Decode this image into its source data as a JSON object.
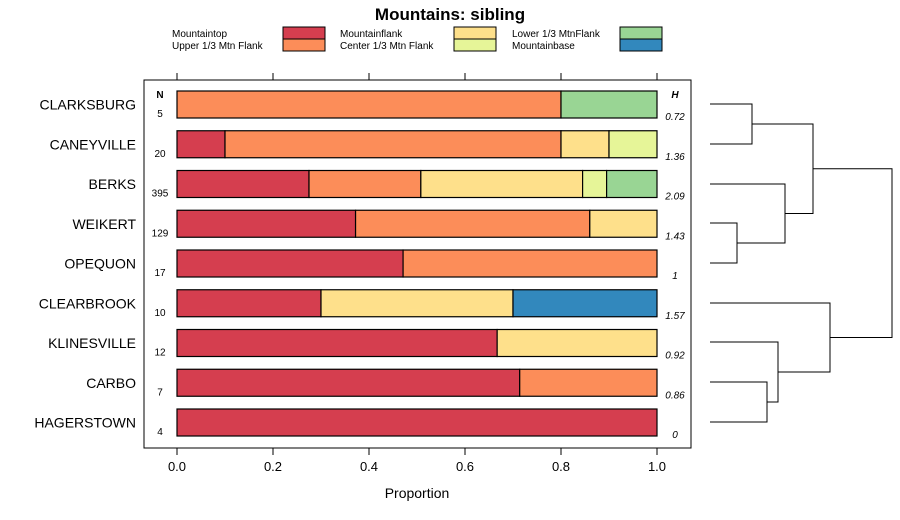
{
  "chart_data": {
    "type": "bar",
    "orientation": "horizontal",
    "stacked": true,
    "title": "Mountains: sibling",
    "xlabel": "Proportion",
    "ylabel": "",
    "xlim": [
      0,
      1
    ],
    "xticks": [
      "0.0",
      "0.2",
      "0.4",
      "0.6",
      "0.8",
      "1.0"
    ],
    "n_header": "N",
    "h_header": "H",
    "categories": [
      "CLARKSBURG",
      "CANEYVILLE",
      "BERKS",
      "WEIKERT",
      "OPEQUON",
      "CLEARBROOK",
      "KLINESVILLE",
      "CARBO",
      "HAGERSTOWN"
    ],
    "n_values": [
      "5",
      "20",
      "395",
      "129",
      "17",
      "10",
      "12",
      "7",
      "4"
    ],
    "h_values": [
      "0.72",
      "1.36",
      "2.09",
      "1.43",
      "1",
      "1.57",
      "0.92",
      "0.86",
      "0"
    ],
    "series": [
      {
        "name": "Mountaintop",
        "color": "#d53e4f",
        "values": [
          0,
          0.1,
          0.275,
          0.372,
          0.471,
          0.3,
          0.667,
          0.714,
          1.0
        ]
      },
      {
        "name": "Upper 1/3 Mtn Flank",
        "color": "#fc8d59",
        "values": [
          0.8,
          0.7,
          0.233,
          0.488,
          0.529,
          0,
          0,
          0.286,
          0
        ]
      },
      {
        "name": "Mountainflank",
        "color": "#fee08b",
        "values": [
          0,
          0.1,
          0.337,
          0.14,
          0,
          0.4,
          0.333,
          0,
          0
        ]
      },
      {
        "name": "Center 1/3 Mtn Flank",
        "color": "#e6f598",
        "values": [
          0,
          0.1,
          0.05,
          0,
          0,
          0,
          0,
          0,
          0
        ]
      },
      {
        "name": "Lower 1/3 MtnFlank",
        "color": "#99d594",
        "values": [
          0.2,
          0,
          0.105,
          0,
          0,
          0,
          0,
          0,
          0
        ]
      },
      {
        "name": "Mountainbase",
        "color": "#3288bd",
        "values": [
          0,
          0,
          0,
          0,
          0,
          0.3,
          0,
          0,
          0
        ]
      }
    ],
    "legend_position": "top",
    "dendrogram": "right"
  }
}
